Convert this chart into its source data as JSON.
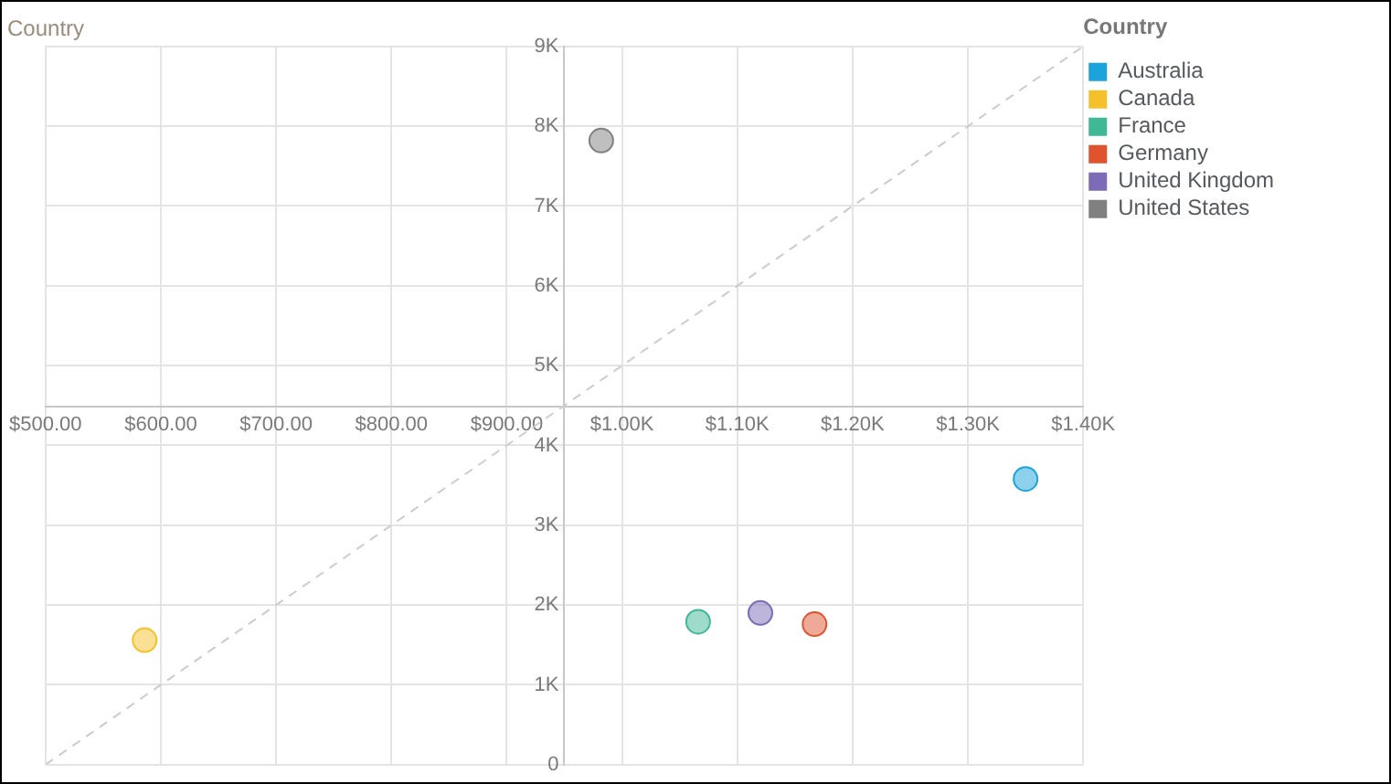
{
  "chart_data": {
    "type": "scatter",
    "title": "Country",
    "legend_title": "Country",
    "xlim": [
      500,
      1400
    ],
    "xticks": [
      {
        "value": 500,
        "label": "$500.00"
      },
      {
        "value": 600,
        "label": "$600.00"
      },
      {
        "value": 700,
        "label": "$700.00"
      },
      {
        "value": 800,
        "label": "$800.00"
      },
      {
        "value": 900,
        "label": "$900.00"
      },
      {
        "value": 1000,
        "label": "$1.00K"
      },
      {
        "value": 1100,
        "label": "$1.10K"
      },
      {
        "value": 1200,
        "label": "$1.20K"
      },
      {
        "value": 1300,
        "label": "$1.30K"
      },
      {
        "value": 1400,
        "label": "$1.40K"
      }
    ],
    "ylim": [
      0,
      9000
    ],
    "yticks": [
      0,
      {
        "value": 1000,
        "label": "1K"
      },
      {
        "value": 2000,
        "label": "2K"
      },
      {
        "value": 3000,
        "label": "3K"
      },
      {
        "value": 4000,
        "label": "4K"
      },
      {
        "value": 5000,
        "label": "5K"
      },
      {
        "value": 6000,
        "label": "6K"
      },
      {
        "value": 7000,
        "label": "7K"
      },
      {
        "value": 8000,
        "label": "8K"
      },
      {
        "value": 9000,
        "label": "9K"
      }
    ],
    "grid": true,
    "legend": "right",
    "marker": "circle",
    "series": [
      {
        "name": "Australia",
        "color": "#1ba3dc",
        "x": [
          1350
        ],
        "values": [
          3580
        ]
      },
      {
        "name": "Canada",
        "color": "#f5c12a",
        "x": [
          586
        ],
        "values": [
          1560
        ]
      },
      {
        "name": "France",
        "color": "#3fb896",
        "x": [
          1066
        ],
        "values": [
          1790
        ]
      },
      {
        "name": "Germany",
        "color": "#e0532f",
        "x": [
          1167
        ],
        "values": [
          1760
        ]
      },
      {
        "name": "United Kingdom",
        "color": "#7d6bb8",
        "x": [
          1120
        ],
        "values": [
          1900
        ]
      },
      {
        "name": "United States",
        "color": "#808080",
        "x": [
          982
        ],
        "values": [
          7820
        ]
      },
      {
        "type": "line",
        "color": "#cccccc",
        "x": [
          500,
          1400
        ],
        "values": [
          0,
          9000
        ],
        "marker": "none",
        "line_style": "dashed"
      }
    ]
  }
}
